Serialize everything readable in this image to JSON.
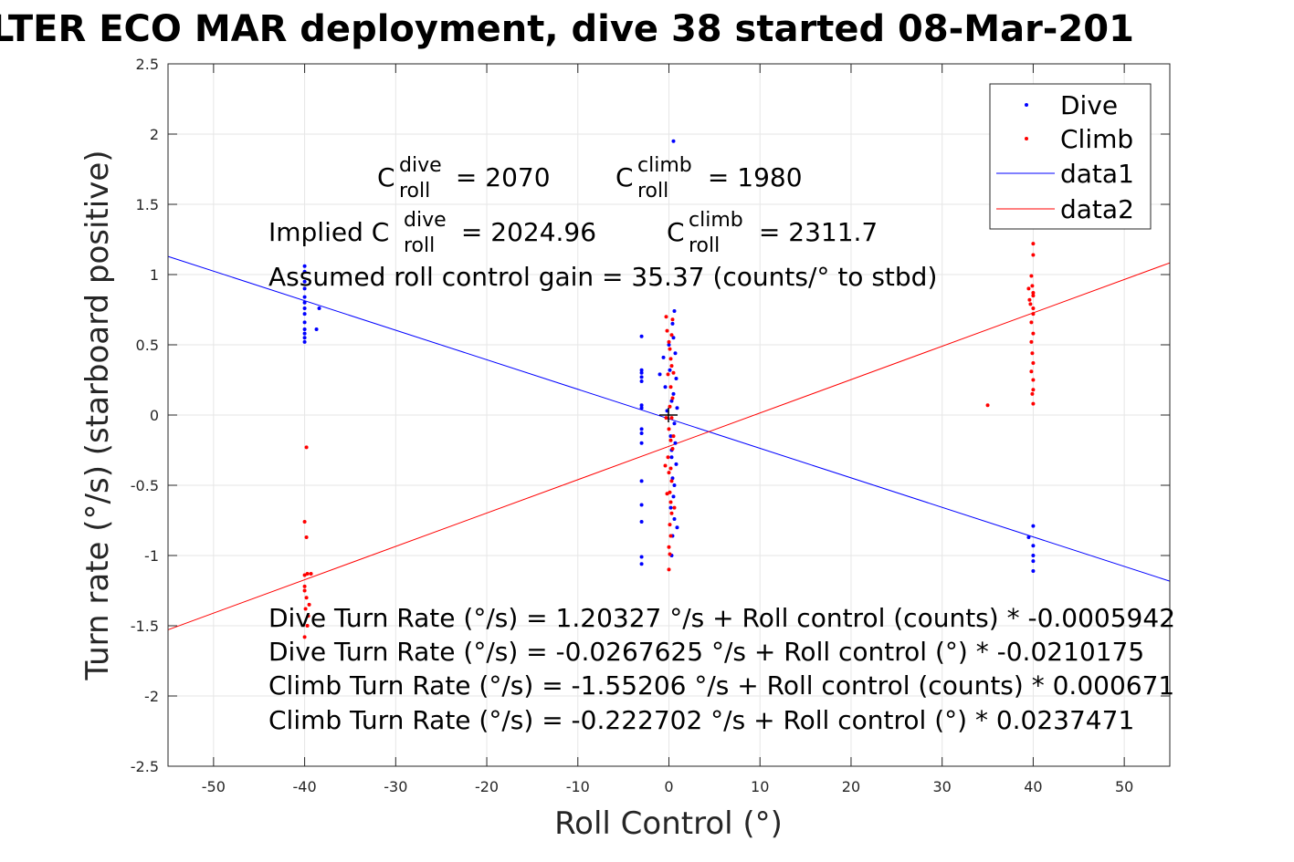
{
  "chart_data": {
    "type": "scatter",
    "title": "LTER ECO MAR deployment, dive 38 started 08-Mar-201",
    "xlabel": "Roll Control (°)",
    "ylabel": "Turn rate (°/s) (starboard positive)",
    "xlim": [
      -55,
      55
    ],
    "ylim": [
      -2.5,
      2.5
    ],
    "xticks": [
      -50,
      -40,
      -30,
      -20,
      -10,
      0,
      10,
      20,
      30,
      40,
      50
    ],
    "yticks": [
      -2.5,
      -2,
      -1.5,
      -1,
      -0.5,
      0,
      0.5,
      1,
      1.5,
      2,
      2.5
    ],
    "xtick_labels": [
      "-50",
      "-40",
      "-30",
      "-20",
      "-10",
      "0",
      "10",
      "20",
      "30",
      "40",
      "50"
    ],
    "ytick_labels": [
      "-2.5",
      "-2",
      "-1.5",
      "-1",
      "-0.5",
      "0",
      "0.5",
      "1",
      "1.5",
      "2",
      "2.5"
    ],
    "grid": true,
    "legend_position": "top-right",
    "legend": [
      "Dive",
      "Climb",
      "data1",
      "data2"
    ],
    "colors": {
      "dive": "#0000ff",
      "climb": "#ff0000",
      "axis": "#262626",
      "grid": "#e6e6e6"
    },
    "series": [
      {
        "name": "Dive",
        "kind": "points",
        "color": "#0000ff",
        "points": [
          [
            -40,
            1.06
          ],
          [
            -40,
            1.02
          ],
          [
            -40,
            0.95
          ],
          [
            -40,
            0.9
          ],
          [
            -40,
            0.84
          ],
          [
            -40,
            0.8
          ],
          [
            -40,
            0.76
          ],
          [
            -40,
            0.72
          ],
          [
            -40,
            0.66
          ],
          [
            -40,
            0.61
          ],
          [
            -40,
            0.58
          ],
          [
            -40,
            0.55
          ],
          [
            -40,
            0.52
          ],
          [
            -38.4,
            0.76
          ],
          [
            -38.7,
            0.61
          ],
          [
            -3,
            0.56
          ],
          [
            -3,
            0.32
          ],
          [
            -3,
            0.3
          ],
          [
            -3,
            0.27
          ],
          [
            -3,
            0.24
          ],
          [
            -3,
            0.07
          ],
          [
            -3,
            0.05
          ],
          [
            -3,
            -0.1
          ],
          [
            -3,
            -0.13
          ],
          [
            -3,
            -0.2
          ],
          [
            -3,
            -0.47
          ],
          [
            -3,
            -0.64
          ],
          [
            -3,
            -0.76
          ],
          [
            -3,
            -1.01
          ],
          [
            -3,
            -1.06
          ],
          [
            -1,
            0.29
          ],
          [
            -0.6,
            0.41
          ],
          [
            -0.4,
            0.2
          ],
          [
            0,
            0.5
          ],
          [
            0.1,
            0.32
          ],
          [
            0.3,
            0.1
          ],
          [
            0.4,
            0.65
          ],
          [
            0.5,
            0.55
          ],
          [
            0.2,
            -0.15
          ],
          [
            0.3,
            -0.3
          ],
          [
            0.4,
            -0.45
          ],
          [
            0.5,
            -0.58
          ],
          [
            0.6,
            -0.74
          ],
          [
            0.4,
            -0.86
          ],
          [
            0.3,
            -1.0
          ],
          [
            0.5,
            1.95
          ],
          [
            0.6,
            0.74
          ],
          [
            0.7,
            0.44
          ],
          [
            0.8,
            0.26
          ],
          [
            0.9,
            0.05
          ],
          [
            0.6,
            -0.06
          ],
          [
            0.7,
            -0.2
          ],
          [
            0.8,
            -0.35
          ],
          [
            0.6,
            -0.5
          ],
          [
            0.9,
            -0.8
          ],
          [
            0.5,
            0.15
          ],
          [
            0.3,
            -0.25
          ],
          [
            -0.2,
            0.03
          ],
          [
            0.2,
            -0.66
          ],
          [
            40,
            -0.79
          ],
          [
            40,
            -0.93
          ],
          [
            40,
            -1.0
          ],
          [
            40,
            -1.04
          ],
          [
            40,
            -1.11
          ],
          [
            39.5,
            -0.87
          ]
        ]
      },
      {
        "name": "Climb",
        "kind": "points",
        "color": "#ff0000",
        "points": [
          [
            -39.8,
            -0.23
          ],
          [
            -40,
            -0.76
          ],
          [
            -39.8,
            -0.87
          ],
          [
            -39.7,
            -1.13
          ],
          [
            -40,
            -1.14
          ],
          [
            -39.3,
            -1.13
          ],
          [
            -40,
            -1.22
          ],
          [
            -39.8,
            -1.3
          ],
          [
            -39.9,
            -1.38
          ],
          [
            -39.6,
            -1.43
          ],
          [
            -39.7,
            -1.5
          ],
          [
            -40,
            -1.58
          ],
          [
            -40,
            -1.25
          ],
          [
            -39.5,
            -1.35
          ],
          [
            -0.3,
            0.7
          ],
          [
            -0.2,
            0.6
          ],
          [
            0,
            0.52
          ],
          [
            0.1,
            0.47
          ],
          [
            0.2,
            0.4
          ],
          [
            0.3,
            0.35
          ],
          [
            -0.1,
            0.29
          ],
          [
            0.2,
            0.2
          ],
          [
            0.4,
            0.12
          ],
          [
            0.1,
            0.06
          ],
          [
            0.3,
            -0.02
          ],
          [
            0,
            -0.1
          ],
          [
            0.2,
            -0.18
          ],
          [
            0.4,
            -0.24
          ],
          [
            -0.1,
            -0.3
          ],
          [
            0.2,
            -0.38
          ],
          [
            0,
            -0.41
          ],
          [
            0.3,
            -0.47
          ],
          [
            0.1,
            -0.55
          ],
          [
            -0.2,
            -0.56
          ],
          [
            0.2,
            -0.62
          ],
          [
            0.3,
            -0.7
          ],
          [
            0.1,
            -0.78
          ],
          [
            0.2,
            -0.86
          ],
          [
            0,
            -0.94
          ],
          [
            0.1,
            -0.99
          ],
          [
            0,
            -1.1
          ],
          [
            0.4,
            0.68
          ],
          [
            0.5,
            0.3
          ],
          [
            -0.3,
            -0.02
          ],
          [
            0.5,
            -0.15
          ],
          [
            0.6,
            -0.66
          ],
          [
            -0.4,
            -0.36
          ],
          [
            0.3,
            0.57
          ],
          [
            35,
            0.07
          ],
          [
            40,
            1.22
          ],
          [
            40,
            1.14
          ],
          [
            39.8,
            0.99
          ],
          [
            39.9,
            0.92
          ],
          [
            40,
            0.87
          ],
          [
            39.6,
            0.82
          ],
          [
            39.7,
            0.79
          ],
          [
            40,
            0.76
          ],
          [
            40,
            0.72
          ],
          [
            39.8,
            0.66
          ],
          [
            40,
            0.58
          ],
          [
            39.8,
            0.52
          ],
          [
            39.9,
            0.44
          ],
          [
            40,
            0.37
          ],
          [
            39.8,
            0.31
          ],
          [
            40,
            0.18
          ],
          [
            39.9,
            0.15
          ],
          [
            40,
            0.08
          ],
          [
            40,
            0.85
          ],
          [
            39.5,
            0.9
          ],
          [
            40,
            0.25
          ]
        ]
      },
      {
        "name": "data1",
        "kind": "line",
        "color": "#0000ff",
        "intercept": -0.0267625,
        "slope": -0.0210175
      },
      {
        "name": "data2",
        "kind": "line",
        "color": "#ff0000",
        "intercept": -0.222702,
        "slope": 0.0237471
      }
    ]
  },
  "annotations": {
    "c_dive_main": "C",
    "c_dive_sup": "dive",
    "c_dive_sub": "roll",
    "c_dive_value": " = 2070",
    "c_climb_main": "C",
    "c_climb_sup": "climb",
    "c_climb_sub": "roll",
    "c_climb_value": " = 1980",
    "implied_prefix": "Implied C",
    "implied_dive_sup": "dive",
    "implied_dive_sub": "roll",
    "implied_dive_value": " = 2024.96",
    "implied_climb_main": "C",
    "implied_climb_sup": "climb",
    "implied_climb_sub": "roll",
    "implied_climb_value": " = 2311.7",
    "gain": "Assumed roll control gain = 35.37 (counts/° to stbd)",
    "fit_lines": [
      "Dive Turn Rate (°/s) = 1.20327 °/s + Roll control (counts) * -0.0005942",
      "Dive Turn Rate (°/s) = -0.0267625 °/s + Roll control (°) * -0.0210175",
      "Climb Turn Rate (°/s) = -1.55206 °/s + Roll control (counts) * 0.000671",
      "Climb Turn Rate (°/s) = -0.222702 °/s + Roll control (°) * 0.0237471"
    ]
  }
}
